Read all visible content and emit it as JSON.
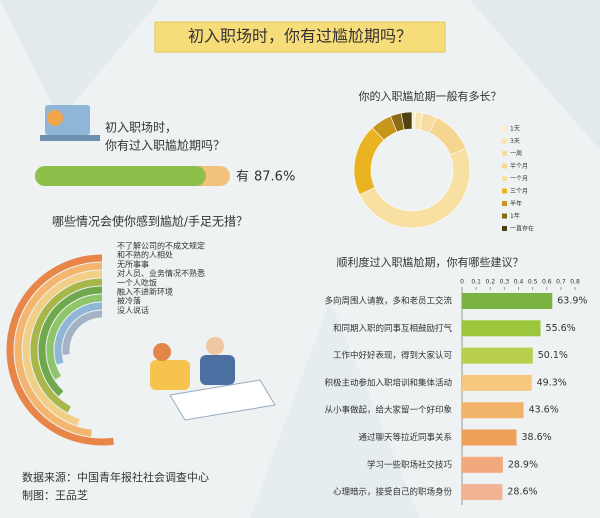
{
  "title": "初入职场时，你有过尴尬期吗？",
  "source": "数据来源：中国青年报社社会调查中心",
  "credit": "制图：王品芝",
  "chart_data": [
    {
      "type": "progress",
      "title": "初入职场时，",
      "subtitle": "你有过入职尴尬期吗？",
      "categories": [
        "有"
      ],
      "values": [
        87.6
      ],
      "value_labels": [
        "87.6%"
      ],
      "xlim": [
        0,
        100
      ],
      "color": "#8cc04a",
      "track_color": "#f2c27c"
    },
    {
      "type": "radial",
      "title": "哪些情况会使你感到尴尬/手足无措？",
      "categories": [
        "不了解公司的不成文规定",
        "和不熟的人相处",
        "无所事事",
        "对人员、业务情况不熟悉",
        "一个人吃饭",
        "融入不进新环境",
        "被冷落",
        "没人说话"
      ],
      "values": [
        52,
        48,
        45,
        42,
        38,
        34,
        30,
        27
      ],
      "colors": [
        "#e8864a",
        "#f4b56e",
        "#f1cf86",
        "#a9b74a",
        "#6fa84d",
        "#8fc56a",
        "#8fb6d6",
        "#a4b2c6"
      ]
    },
    {
      "type": "donut",
      "title": "你的入职尴尬期一般有多长？",
      "categories": [
        "1天",
        "3天",
        "一周",
        "半个月",
        "一个月",
        "三个月",
        "半年",
        "1年",
        "一直存在"
      ],
      "values": [
        1,
        2,
        4,
        12,
        49,
        20,
        6,
        3,
        3
      ],
      "colors": [
        "#fbeecb",
        "#f8e4b0",
        "#f6dca0",
        "#f5d590",
        "#f8dfa2",
        "#e9b321",
        "#c8961a",
        "#8a6a14",
        "#4f4212"
      ]
    },
    {
      "type": "hbar",
      "title": "顺利度过入职尴尬期，你有哪些建议？",
      "categories": [
        "多向周围人请教，多和老员工交流",
        "和同期入职的同事互相鼓励打气",
        "工作中好好表现，得到大家认可",
        "积极主动参加入职培训和集体活动",
        "从小事做起，给大家留一个好印象",
        "通过聊天等拉近同事关系",
        "学习一些职场社交技巧",
        "心理暗示，接受自己的职场身份"
      ],
      "values": [
        0.639,
        0.556,
        0.501,
        0.493,
        0.436,
        0.386,
        0.289,
        0.286
      ],
      "value_labels": [
        "63.9%",
        "55.6%",
        "50.1%",
        "49.3%",
        "43.6%",
        "38.6%",
        "28.9%",
        "28.6%"
      ],
      "colors": [
        "#7bb342",
        "#9cc63c",
        "#b7cf4c",
        "#f6c77c",
        "#f2b468",
        "#ef9f58",
        "#f3a87e",
        "#f1b394"
      ],
      "xlim": [
        0,
        0.8
      ],
      "xticks": [
        0,
        0.1,
        0.2,
        0.3,
        0.4,
        0.5,
        0.6,
        0.7,
        0.8
      ]
    }
  ]
}
